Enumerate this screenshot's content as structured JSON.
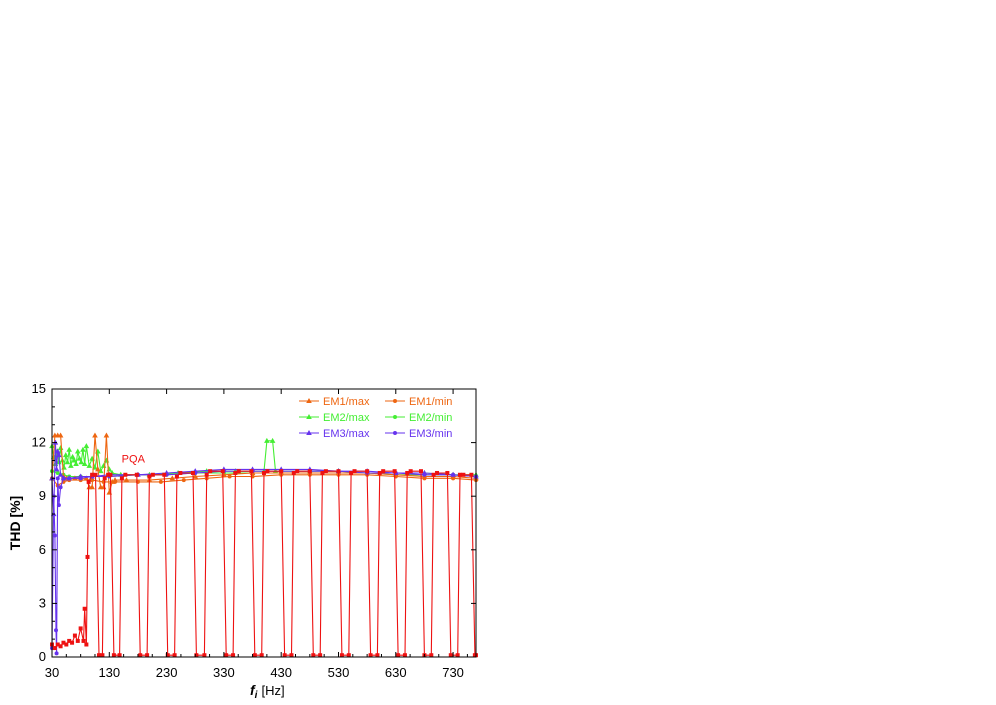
{
  "chart_data": {
    "type": "line",
    "xlabel": "f",
    "xlabel_sub": "i",
    "xlabel_unit": "[Hz]",
    "ylabel": "THD [%]",
    "xlim": [
      30,
      770
    ],
    "ylim": [
      0,
      15
    ],
    "xticks": [
      30,
      130,
      230,
      330,
      430,
      530,
      630,
      730
    ],
    "yticks": [
      0,
      3,
      6,
      9,
      12,
      15
    ],
    "grid": false,
    "legend_position": "top-right",
    "annotation": {
      "text": "PQA",
      "x": 190,
      "y": 10.9,
      "color": "#ee1111"
    },
    "series": [
      {
        "name": "EM1/max",
        "color": "#ee6611",
        "marker": "triangle",
        "points": [
          [
            30,
            10.0
          ],
          [
            35,
            12.4
          ],
          [
            40,
            12.4
          ],
          [
            45,
            12.4
          ],
          [
            50,
            10.1
          ],
          [
            55,
            10.0
          ],
          [
            60,
            10.0
          ],
          [
            70,
            10.0
          ],
          [
            80,
            10.0
          ],
          [
            90,
            10.0
          ],
          [
            95,
            9.5
          ],
          [
            100,
            9.5
          ],
          [
            105,
            12.4
          ],
          [
            110,
            10.5
          ],
          [
            115,
            9.5
          ],
          [
            120,
            9.5
          ],
          [
            125,
            12.4
          ],
          [
            130,
            9.2
          ],
          [
            135,
            9.8
          ],
          [
            140,
            9.9
          ],
          [
            160,
            9.9
          ],
          [
            200,
            9.9
          ],
          [
            240,
            10.0
          ],
          [
            280,
            10.1
          ],
          [
            330,
            10.2
          ],
          [
            380,
            10.3
          ],
          [
            430,
            10.3
          ],
          [
            480,
            10.3
          ],
          [
            530,
            10.3
          ],
          [
            580,
            10.3
          ],
          [
            630,
            10.2
          ],
          [
            680,
            10.1
          ],
          [
            730,
            10.1
          ],
          [
            770,
            10.0
          ]
        ]
      },
      {
        "name": "EM1/min",
        "color": "#ee6611",
        "marker": "circle",
        "points": [
          [
            30,
            10.0
          ],
          [
            40,
            9.6
          ],
          [
            50,
            9.8
          ],
          [
            60,
            9.9
          ],
          [
            80,
            9.9
          ],
          [
            100,
            9.9
          ],
          [
            120,
            9.8
          ],
          [
            140,
            9.8
          ],
          [
            180,
            9.8
          ],
          [
            220,
            9.8
          ],
          [
            260,
            9.9
          ],
          [
            300,
            10.0
          ],
          [
            340,
            10.1
          ],
          [
            380,
            10.1
          ],
          [
            430,
            10.2
          ],
          [
            480,
            10.2
          ],
          [
            530,
            10.2
          ],
          [
            580,
            10.2
          ],
          [
            630,
            10.1
          ],
          [
            680,
            10.0
          ],
          [
            730,
            10.0
          ],
          [
            770,
            9.9
          ]
        ]
      },
      {
        "name": "EM2/max",
        "color": "#44ee33",
        "marker": "triangle",
        "points": [
          [
            30,
            11.8
          ],
          [
            33,
            11.2
          ],
          [
            36,
            10.8
          ],
          [
            39,
            11.5
          ],
          [
            42,
            10.9
          ],
          [
            45,
            11.7
          ],
          [
            48,
            11.0
          ],
          [
            51,
            10.6
          ],
          [
            54,
            11.3
          ],
          [
            57,
            10.9
          ],
          [
            60,
            11.6
          ],
          [
            63,
            10.7
          ],
          [
            66,
            11.2
          ],
          [
            69,
            11.0
          ],
          [
            72,
            10.8
          ],
          [
            75,
            11.5
          ],
          [
            78,
            11.1
          ],
          [
            81,
            10.9
          ],
          [
            84,
            11.6
          ],
          [
            87,
            10.8
          ],
          [
            90,
            11.8
          ],
          [
            95,
            10.7
          ],
          [
            100,
            11.1
          ],
          [
            105,
            10.6
          ],
          [
            110,
            11.5
          ],
          [
            115,
            10.4
          ],
          [
            120,
            10.7
          ],
          [
            125,
            11.0
          ],
          [
            130,
            10.5
          ],
          [
            135,
            10.3
          ],
          [
            150,
            10.2
          ],
          [
            200,
            10.2
          ],
          [
            250,
            10.3
          ],
          [
            300,
            10.4
          ],
          [
            350,
            10.4
          ],
          [
            400,
            10.4
          ],
          [
            405,
            12.1
          ],
          [
            415,
            12.1
          ],
          [
            420,
            10.4
          ],
          [
            480,
            10.4
          ],
          [
            530,
            10.4
          ],
          [
            580,
            10.3
          ],
          [
            630,
            10.3
          ],
          [
            680,
            10.3
          ],
          [
            730,
            10.2
          ],
          [
            770,
            10.2
          ]
        ]
      },
      {
        "name": "EM2/min",
        "color": "#44ee33",
        "marker": "circle",
        "points": [
          [
            30,
            10.4
          ],
          [
            40,
            10.3
          ],
          [
            50,
            10.2
          ],
          [
            60,
            10.1
          ],
          [
            80,
            10.1
          ],
          [
            100,
            10.1
          ],
          [
            130,
            10.1
          ],
          [
            180,
            10.2
          ],
          [
            230,
            10.2
          ],
          [
            280,
            10.3
          ],
          [
            330,
            10.3
          ],
          [
            380,
            10.3
          ],
          [
            430,
            10.3
          ],
          [
            480,
            10.3
          ],
          [
            530,
            10.3
          ],
          [
            580,
            10.3
          ],
          [
            630,
            10.2
          ],
          [
            680,
            10.2
          ],
          [
            730,
            10.2
          ],
          [
            770,
            10.1
          ]
        ]
      },
      {
        "name": "EM3/max",
        "color": "#6633ee",
        "marker": "triangle",
        "points": [
          [
            30,
            10.0
          ],
          [
            33,
            8.0
          ],
          [
            36,
            12.0
          ],
          [
            38,
            10.5
          ],
          [
            40,
            11.5
          ],
          [
            42,
            11.3
          ],
          [
            45,
            10.2
          ],
          [
            50,
            10.0
          ],
          [
            60,
            10.0
          ],
          [
            80,
            10.1
          ],
          [
            100,
            10.1
          ],
          [
            130,
            10.2
          ],
          [
            180,
            10.2
          ],
          [
            230,
            10.3
          ],
          [
            280,
            10.4
          ],
          [
            330,
            10.5
          ],
          [
            380,
            10.5
          ],
          [
            430,
            10.5
          ],
          [
            480,
            10.5
          ],
          [
            530,
            10.4
          ],
          [
            580,
            10.4
          ],
          [
            630,
            10.3
          ],
          [
            680,
            10.3
          ],
          [
            730,
            10.2
          ],
          [
            770,
            10.1
          ]
        ]
      },
      {
        "name": "EM3/min",
        "color": "#6633ee",
        "marker": "circle",
        "points": [
          [
            30,
            0.5
          ],
          [
            33,
            9.0
          ],
          [
            35,
            6.8
          ],
          [
            37,
            1.5
          ],
          [
            38,
            0.2
          ],
          [
            40,
            10.0
          ],
          [
            42,
            8.5
          ],
          [
            45,
            9.5
          ],
          [
            50,
            10.0
          ],
          [
            60,
            10.0
          ],
          [
            80,
            10.0
          ],
          [
            100,
            10.1
          ],
          [
            130,
            10.1
          ],
          [
            180,
            10.2
          ],
          [
            230,
            10.2
          ],
          [
            280,
            10.3
          ],
          [
            330,
            10.4
          ],
          [
            380,
            10.4
          ],
          [
            430,
            10.4
          ],
          [
            480,
            10.4
          ],
          [
            530,
            10.4
          ],
          [
            580,
            10.3
          ],
          [
            630,
            10.3
          ],
          [
            680,
            10.2
          ],
          [
            730,
            10.2
          ],
          [
            770,
            10.1
          ]
        ]
      },
      {
        "name": "PQA",
        "color": "#ee1111",
        "marker": "square",
        "points": [
          [
            30,
            0.7
          ],
          [
            35,
            0.5
          ],
          [
            40,
            0.7
          ],
          [
            45,
            0.6
          ],
          [
            50,
            0.8
          ],
          [
            55,
            0.7
          ],
          [
            60,
            0.9
          ],
          [
            65,
            0.8
          ],
          [
            70,
            1.2
          ],
          [
            75,
            0.9
          ],
          [
            80,
            1.6
          ],
          [
            85,
            0.9
          ],
          [
            87,
            2.7
          ],
          [
            90,
            0.7
          ],
          [
            92,
            5.6
          ],
          [
            94,
            9.8
          ],
          [
            100,
            10.2
          ],
          [
            106,
            10.2
          ],
          [
            112,
            0.1
          ],
          [
            118,
            0.1
          ],
          [
            122,
            10.0
          ],
          [
            128,
            10.2
          ],
          [
            132,
            10.2
          ],
          [
            138,
            0.1
          ],
          [
            148,
            0.1
          ],
          [
            152,
            10.0
          ],
          [
            158,
            10.2
          ],
          [
            178,
            10.2
          ],
          [
            184,
            0.1
          ],
          [
            196,
            0.1
          ],
          [
            200,
            10.1
          ],
          [
            206,
            10.2
          ],
          [
            226,
            10.2
          ],
          [
            232,
            0.1
          ],
          [
            244,
            0.1
          ],
          [
            248,
            10.1
          ],
          [
            254,
            10.3
          ],
          [
            276,
            10.3
          ],
          [
            282,
            0.1
          ],
          [
            296,
            0.1
          ],
          [
            300,
            10.2
          ],
          [
            306,
            10.4
          ],
          [
            328,
            10.4
          ],
          [
            334,
            0.1
          ],
          [
            346,
            0.1
          ],
          [
            350,
            10.3
          ],
          [
            356,
            10.4
          ],
          [
            378,
            10.4
          ],
          [
            384,
            0.1
          ],
          [
            396,
            0.1
          ],
          [
            400,
            10.3
          ],
          [
            406,
            10.4
          ],
          [
            430,
            10.4
          ],
          [
            436,
            0.1
          ],
          [
            448,
            0.1
          ],
          [
            452,
            10.3
          ],
          [
            458,
            10.4
          ],
          [
            480,
            10.4
          ],
          [
            486,
            0.1
          ],
          [
            498,
            0.1
          ],
          [
            502,
            10.3
          ],
          [
            508,
            10.4
          ],
          [
            530,
            10.4
          ],
          [
            536,
            0.1
          ],
          [
            548,
            0.1
          ],
          [
            552,
            10.3
          ],
          [
            558,
            10.4
          ],
          [
            580,
            10.4
          ],
          [
            586,
            0.1
          ],
          [
            598,
            0.1
          ],
          [
            602,
            10.3
          ],
          [
            608,
            10.4
          ],
          [
            628,
            10.4
          ],
          [
            634,
            0.1
          ],
          [
            646,
            0.1
          ],
          [
            650,
            10.3
          ],
          [
            656,
            10.4
          ],
          [
            674,
            10.4
          ],
          [
            680,
            0.1
          ],
          [
            692,
            0.1
          ],
          [
            696,
            10.2
          ],
          [
            702,
            10.3
          ],
          [
            720,
            10.3
          ],
          [
            726,
            0.1
          ],
          [
            738,
            0.1
          ],
          [
            742,
            10.2
          ],
          [
            748,
            10.2
          ],
          [
            762,
            10.2
          ],
          [
            768,
            0.1
          ],
          [
            770,
            0.1
          ]
        ]
      }
    ]
  }
}
